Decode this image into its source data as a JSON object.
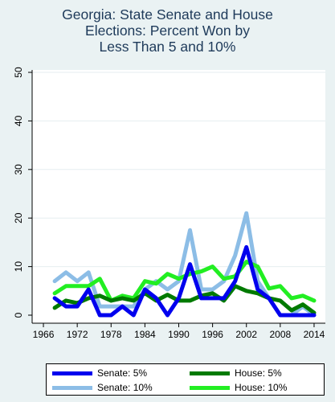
{
  "chart_data": {
    "type": "line",
    "title": [
      "Georgia: State Senate and House",
      "Elections: Percent Won by",
      "Less Than 5 and 10%"
    ],
    "xlabel": "",
    "ylabel": "",
    "xlim": [
      1964,
      2016
    ],
    "ylim": [
      0,
      50
    ],
    "x_ticks": [
      "1966",
      "1972",
      "1978",
      "1984",
      "1990",
      "1996",
      "2002",
      "2008",
      "2014"
    ],
    "y_ticks": [
      "0",
      "10",
      "20",
      "30",
      "40",
      "50"
    ],
    "grid": true,
    "legend_position": "bottom",
    "x": [
      1968,
      1970,
      1972,
      1974,
      1976,
      1978,
      1980,
      1982,
      1984,
      1986,
      1988,
      1990,
      1992,
      1994,
      1996,
      1998,
      2000,
      2002,
      2004,
      2006,
      2008,
      2010,
      2012,
      2014
    ],
    "series": [
      {
        "name": "Senate: 5%",
        "color": "#0000ee",
        "width": 5,
        "values": [
          3.5,
          1.8,
          1.8,
          5.3,
          0,
          0,
          1.8,
          0,
          5.3,
          3.5,
          0,
          3.5,
          10.5,
          3.5,
          3.5,
          3.5,
          7,
          14,
          5.3,
          3.5,
          0,
          0,
          0,
          0
        ]
      },
      {
        "name": "Senate: 10%",
        "color": "#8cbde6",
        "width": 5,
        "values": [
          7,
          8.8,
          7,
          8.8,
          1.8,
          1.8,
          1.8,
          1.8,
          5.3,
          7,
          5.3,
          7,
          17.5,
          5.3,
          5.3,
          7,
          12.3,
          21,
          7,
          3.5,
          0,
          0,
          1.8,
          0
        ]
      },
      {
        "name": "House: 5%",
        "color": "#007a00",
        "width": 5,
        "values": [
          1.5,
          3,
          2.5,
          3.5,
          4,
          3,
          3.5,
          3,
          4.5,
          3,
          4.2,
          3,
          3,
          4,
          4.5,
          3,
          6,
          5,
          4.5,
          3.5,
          3,
          1,
          2.2,
          0.5
        ]
      },
      {
        "name": "House: 10%",
        "color": "#22ee22",
        "width": 5,
        "values": [
          4.5,
          6,
          6,
          6,
          7.5,
          3,
          4,
          3.5,
          7,
          6.5,
          8.5,
          7.5,
          8.5,
          9,
          10,
          7.5,
          8,
          11,
          10,
          5.5,
          6,
          3.5,
          4,
          3
        ]
      }
    ]
  },
  "legend": {
    "items": [
      {
        "label": "Senate: 5%",
        "color": "#0000ee"
      },
      {
        "label": "House: 5%",
        "color": "#007a00"
      },
      {
        "label": "Senate: 10%",
        "color": "#8cbde6"
      },
      {
        "label": "House: 10%",
        "color": "#22ee22"
      }
    ]
  }
}
